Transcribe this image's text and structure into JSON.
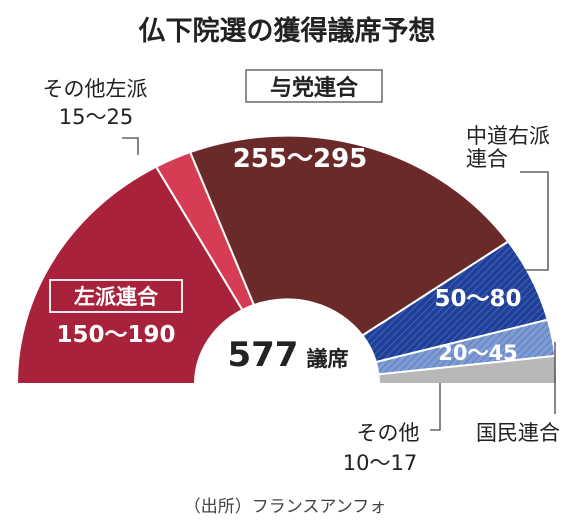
{
  "chart_data": {
    "type": "pie",
    "subtype": "semicircle-parliament",
    "title": "仏下院選の獲得議席予想",
    "center_total": "577",
    "center_unit": "議席",
    "source": "（出所）フランスアンフォ",
    "segments": [
      {
        "id": "left-alliance",
        "name": "左派連合",
        "range": "150〜190",
        "low": 150,
        "high": 190,
        "color": "#a8223b"
      },
      {
        "id": "other-left",
        "name": "その他左派",
        "range": "15〜25",
        "low": 15,
        "high": 25,
        "color": "#d63d55"
      },
      {
        "id": "ruling-coalition",
        "name": "与党連合",
        "range": "255〜295",
        "low": 255,
        "high": 295,
        "color": "#6b2a2a"
      },
      {
        "id": "center-right",
        "name": "中道右派連合",
        "range": "50〜80",
        "low": 50,
        "high": 80,
        "color": "#20409a"
      },
      {
        "id": "national-rally",
        "name": "国民連合",
        "range": "20〜45",
        "low": 20,
        "high": 45,
        "color": "#5f82c3"
      },
      {
        "id": "others",
        "name": "その他",
        "range": "10〜17",
        "low": 10,
        "high": 17,
        "color": "#b8b8b8"
      }
    ]
  },
  "labels": {
    "title": "仏下院選の獲得議席予想",
    "ruling_name": "与党連合",
    "ruling_range": "255〜295",
    "left_name": "左派連合",
    "left_range": "150〜190",
    "other_left_name": "その他左派",
    "other_left_range": "15〜25",
    "center_right_name_1": "中道右派",
    "center_right_name_2": "連合",
    "center_right_range": "50〜80",
    "national_rally_range": "20〜45",
    "national_rally_name": "国民連合",
    "others_name": "その他",
    "others_range": "10〜17",
    "total_number": "577",
    "total_unit": "議席",
    "source": "（出所）フランスアンフォ"
  }
}
